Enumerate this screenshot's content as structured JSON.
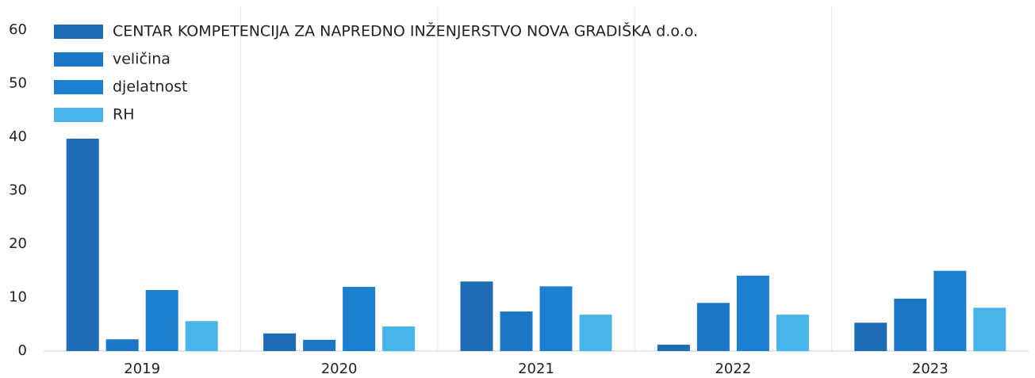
{
  "chart_data": {
    "type": "bar",
    "categories": [
      "2019",
      "2020",
      "2021",
      "2022",
      "2023"
    ],
    "series": [
      {
        "name": "CENTAR KOMPETENCIJA ZA NAPREDNO INŽENJERSTVO NOVA GRADIŠKA d.o.o.",
        "color": "#1d6db4",
        "values": [
          39.7,
          3.3,
          13.0,
          1.2,
          5.3
        ]
      },
      {
        "name": "veličina",
        "color": "#1a78c6",
        "values": [
          2.2,
          2.1,
          7.4,
          9.0,
          9.8
        ]
      },
      {
        "name": "djelatnost",
        "color": "#1c7fd0",
        "values": [
          11.4,
          12.0,
          12.1,
          14.1,
          15.0
        ]
      },
      {
        "name": "RH",
        "color": "#47b4ea",
        "values": [
          5.6,
          4.6,
          6.8,
          6.8,
          8.1
        ]
      }
    ],
    "ylim": [
      0,
      60
    ],
    "yticks": [
      0,
      10,
      20,
      30,
      40,
      50,
      60
    ],
    "grid": false,
    "legend": "top-left"
  }
}
